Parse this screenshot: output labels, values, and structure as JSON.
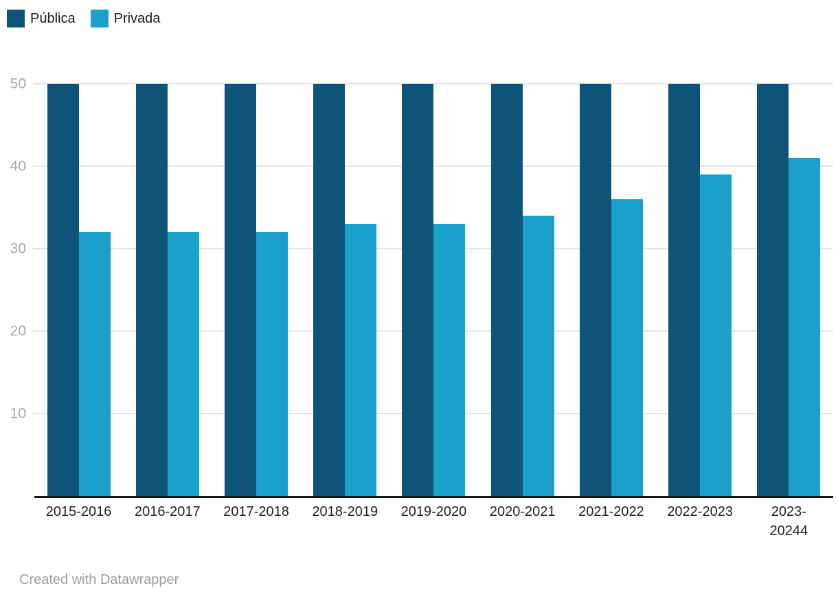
{
  "chart_data": {
    "type": "bar",
    "grouped": true,
    "categories": [
      "2015-2016",
      "2016-2017",
      "2017-2018",
      "2018-2019",
      "2019-2020",
      "2020-2021",
      "2021-2022",
      "2022-2023",
      "2023-\n20244"
    ],
    "series": [
      {
        "name": "Pública",
        "color": "#0d5478",
        "values": [
          50,
          50,
          50,
          50,
          50,
          50,
          50,
          50,
          50
        ]
      },
      {
        "name": "Privada",
        "color": "#1aa0ca",
        "values": [
          32,
          32,
          32,
          33,
          33,
          34,
          36,
          39,
          41
        ]
      }
    ],
    "title": "",
    "xlabel": "",
    "ylabel": "",
    "ylim": [
      0,
      50
    ],
    "yticks": [
      10,
      20,
      30,
      40,
      50
    ],
    "grid": true,
    "legend_position": "top-left"
  },
  "colors": {
    "gridline": "#e4e4e4",
    "axis_line": "#161616",
    "ytick_label": "#aaaaaa",
    "xtick_label": "#222222",
    "background": "#ffffff"
  },
  "footer": {
    "attribution": "Created with Datawrapper"
  }
}
